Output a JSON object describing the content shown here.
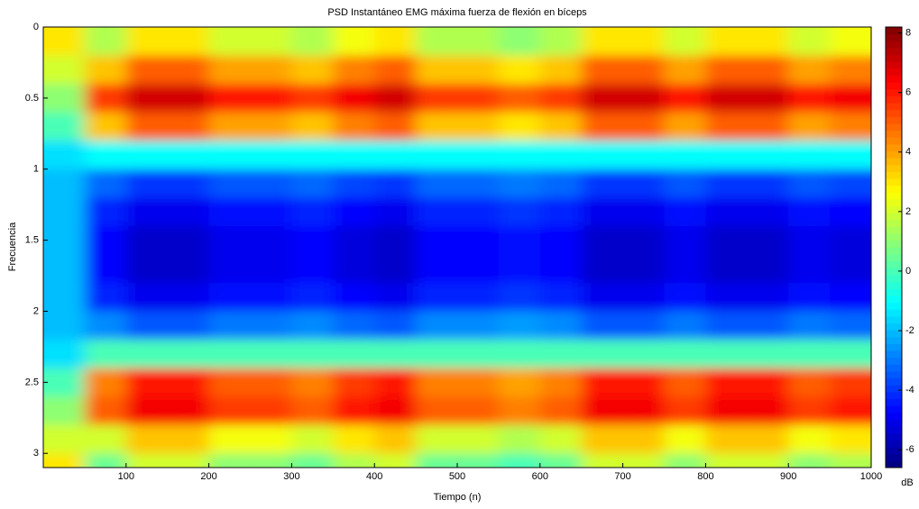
{
  "chart_data": {
    "type": "heatmap",
    "title": "PSD Instantáneo EMG máxima fuerza de flexión en bíceps",
    "xlabel": "Tiempo (n)",
    "ylabel": "Frecuencia",
    "colorbar_label": "dB",
    "colormap": "jet",
    "x": [
      25,
      75,
      125,
      175,
      225,
      275,
      325,
      375,
      425,
      475,
      525,
      575,
      625,
      675,
      725,
      775,
      825,
      875,
      925,
      975
    ],
    "y": [
      0.1,
      0.3,
      0.5,
      0.7,
      0.9,
      1.1,
      1.3,
      1.5,
      1.7,
      1.9,
      2.1,
      2.3,
      2.5,
      2.7,
      2.9,
      3.1
    ],
    "values": [
      [
        3,
        1.5,
        3,
        3,
        2,
        2,
        1.5,
        2.5,
        3,
        1.5,
        1.5,
        1,
        1.5,
        3,
        3,
        2,
        3,
        3,
        2,
        2.5
      ],
      [
        2,
        3.5,
        5,
        5,
        4,
        4,
        3.5,
        4.5,
        5,
        3.5,
        3.5,
        3,
        3.5,
        5,
        5,
        4,
        5,
        5,
        4,
        4.5
      ],
      [
        1,
        5.5,
        7,
        7,
        6,
        6,
        5.5,
        6.5,
        7,
        5.5,
        5.5,
        5,
        5.5,
        7,
        7,
        6,
        7,
        7,
        6,
        6.5
      ],
      [
        0,
        3.5,
        5,
        5,
        4,
        4,
        3.5,
        4.5,
        5,
        3.5,
        3.5,
        3,
        3.5,
        5,
        5,
        4,
        5,
        5,
        4,
        4.5
      ],
      [
        -1.5,
        -1,
        -1,
        -1,
        -1,
        -1,
        -1,
        -1,
        -1,
        -1,
        -1,
        -1,
        -1,
        -1,
        -1,
        -1,
        -1,
        -1,
        -1,
        -1
      ],
      [
        -2,
        -3.25,
        -4,
        -4,
        -3.5,
        -3.5,
        -3.25,
        -3.75,
        -4,
        -3.25,
        -3.25,
        -3,
        -3.25,
        -4,
        -4,
        -3.5,
        -4,
        -4,
        -3.5,
        -3.75
      ],
      [
        -2,
        -4.25,
        -5,
        -5,
        -4.5,
        -4.5,
        -4.25,
        -4.75,
        -5,
        -4.25,
        -4.25,
        -4,
        -4.25,
        -5,
        -5,
        -4.5,
        -5,
        -5,
        -4.5,
        -4.75
      ],
      [
        -2,
        -4.75,
        -5.5,
        -5.5,
        -5,
        -5,
        -4.75,
        -5.25,
        -5.5,
        -4.75,
        -4.75,
        -4.5,
        -4.75,
        -5.5,
        -5.5,
        -5,
        -5.5,
        -5.5,
        -5,
        -5.25
      ],
      [
        -2,
        -4.75,
        -5.5,
        -5.5,
        -5,
        -5,
        -4.75,
        -5.25,
        -5.5,
        -4.75,
        -4.75,
        -4.5,
        -4.75,
        -5.5,
        -5.5,
        -5,
        -5.5,
        -5.5,
        -5,
        -5.25
      ],
      [
        -2,
        -4.25,
        -5,
        -5,
        -4.5,
        -4.5,
        -4.25,
        -4.75,
        -5,
        -4.25,
        -4.25,
        -4,
        -4.25,
        -5,
        -5,
        -4.5,
        -5,
        -5,
        -4.5,
        -4.75
      ],
      [
        -2,
        -2.75,
        -3.5,
        -3.5,
        -3,
        -3,
        -2.75,
        -3.25,
        -3.5,
        -2.75,
        -2.75,
        -2.5,
        -2.75,
        -3.5,
        -3.5,
        -3,
        -3.5,
        -3.5,
        -3,
        -3.25
      ],
      [
        -1.5,
        0,
        0,
        0,
        0,
        0,
        0,
        0,
        0,
        0,
        0,
        0,
        0,
        0,
        0,
        0,
        0,
        0,
        0,
        0
      ],
      [
        0,
        4.5,
        6,
        6,
        5,
        5,
        4.5,
        5.5,
        6,
        4.5,
        4.5,
        4,
        4.5,
        6,
        6,
        5,
        6,
        6,
        5,
        5.5
      ],
      [
        1,
        5,
        6.5,
        6.5,
        5.5,
        5.5,
        5,
        6,
        6.5,
        5,
        5,
        4.5,
        5,
        6.5,
        6.5,
        5.5,
        6.5,
        6.5,
        5.5,
        6
      ],
      [
        2,
        2,
        3.5,
        3.5,
        2.5,
        2.5,
        2,
        3,
        3.5,
        2,
        2,
        1.5,
        2,
        3.5,
        3.5,
        2.5,
        3.5,
        3.5,
        2.5,
        3
      ],
      [
        3,
        0.5,
        2,
        2,
        1,
        1,
        0.5,
        1.5,
        2,
        0.5,
        0.5,
        0,
        0.5,
        2,
        2,
        1,
        2,
        2,
        1,
        1.5
      ]
    ],
    "xlim": [
      0,
      1000
    ],
    "xticks": [
      100,
      200,
      300,
      400,
      500,
      600,
      700,
      800,
      900,
      1000
    ],
    "ylim": [
      0,
      3.1
    ],
    "yticks": [
      0,
      0.5,
      1,
      1.5,
      2,
      2.5,
      3
    ],
    "clim": [
      -6.6,
      8.2
    ],
    "cticks": [
      -6,
      -4,
      -2,
      0,
      2,
      4,
      6,
      8
    ]
  }
}
